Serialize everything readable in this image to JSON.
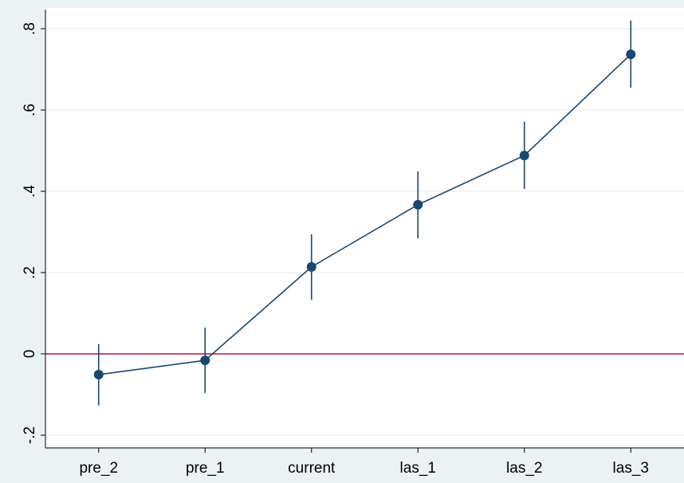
{
  "chart_data": {
    "type": "line",
    "categories": [
      "pre_2",
      "pre_1",
      "current",
      "las_1",
      "las_2",
      "las_3"
    ],
    "series": [
      {
        "color": "#1a476f",
        "values": [
          -0.051,
          -0.016,
          0.214,
          0.367,
          0.488,
          0.737
        ],
        "lower": [
          -0.127,
          -0.096,
          0.133,
          0.284,
          0.406,
          0.655
        ],
        "upper": [
          0.024,
          0.065,
          0.294,
          0.449,
          0.571,
          0.82
        ]
      }
    ],
    "ylim": [
      -0.23,
      0.85
    ],
    "yticks": [
      {
        "value": -0.2,
        "label": "-.2"
      },
      0,
      {
        "value": 0.2,
        "label": ".2"
      },
      {
        "value": 0.4,
        "label": ".4"
      },
      {
        "value": 0.6,
        "label": ".6"
      },
      {
        "value": 0.8,
        "label": ".8"
      }
    ],
    "grid": true,
    "refline": 0,
    "refline_color": "#b5123f"
  }
}
